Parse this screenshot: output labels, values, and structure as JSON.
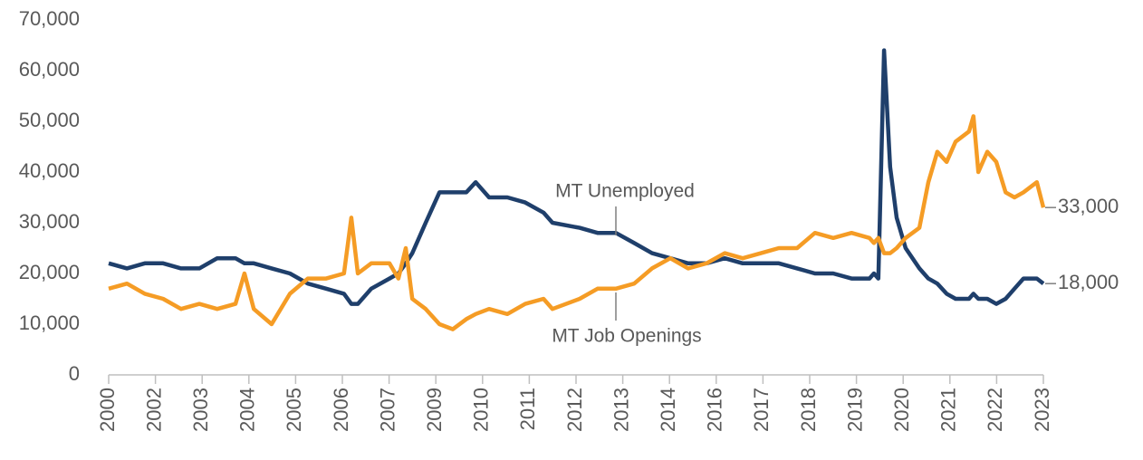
{
  "chart_data": {
    "type": "line",
    "x": [
      2000,
      2000.45,
      2000.89,
      2001.34,
      2001.78,
      2002.23,
      2002.67,
      2003.12,
      2003.34,
      2003.57,
      2004.01,
      2004.46,
      2004.9,
      2005.35,
      2005.79,
      2005.97,
      2006.13,
      2006.46,
      2006.91,
      2007.13,
      2007.31,
      2007.47,
      2007.8,
      2008.14,
      2008.47,
      2008.8,
      2009.03,
      2009.36,
      2009.81,
      2010.25,
      2010.7,
      2010.92,
      2011.59,
      2012.03,
      2012.48,
      2012.93,
      2013.37,
      2013.82,
      2014.26,
      2014.71,
      2015.16,
      2015.6,
      2016.05,
      2016.49,
      2016.94,
      2017.38,
      2017.83,
      2018.28,
      2018.72,
      2018.83,
      2018.94,
      2019.08,
      2019.23,
      2019.39,
      2019.61,
      2019.95,
      2020.17,
      2020.39,
      2020.62,
      2020.84,
      2021.17,
      2021.28,
      2021.4,
      2021.62,
      2021.84,
      2022.07,
      2022.29,
      2022.51,
      2022.84,
      2023
    ],
    "series": [
      {
        "name": "MT Unemployed",
        "color": "#1f3f6b",
        "end_label": "18,000",
        "values": [
          22000,
          21000,
          22000,
          22000,
          21000,
          21000,
          23000,
          23000,
          22000,
          22000,
          21000,
          20000,
          18000,
          17000,
          16000,
          14000,
          14000,
          17000,
          19000,
          20000,
          22000,
          24000,
          30000,
          36000,
          36000,
          36000,
          38000,
          35000,
          35000,
          34000,
          32000,
          30000,
          29000,
          28000,
          28000,
          26000,
          24000,
          23000,
          22000,
          22000,
          23000,
          22000,
          22000,
          22000,
          21000,
          20000,
          20000,
          19000,
          19000,
          20000,
          19000,
          64000,
          41000,
          31000,
          25000,
          21000,
          19000,
          18000,
          16000,
          15000,
          15000,
          16000,
          15000,
          15000,
          14000,
          15000,
          17000,
          19000,
          19000,
          18000
        ]
      },
      {
        "name": "MT Job Openings",
        "color": "#f59c25",
        "end_label": "33,000",
        "values": [
          17000,
          18000,
          16000,
          15000,
          13000,
          14000,
          13000,
          14000,
          20000,
          13000,
          10000,
          16000,
          19000,
          19000,
          20000,
          31000,
          20000,
          22000,
          22000,
          19000,
          25000,
          15000,
          13000,
          10000,
          9000,
          11000,
          12000,
          13000,
          12000,
          14000,
          15000,
          13000,
          15000,
          17000,
          17000,
          18000,
          21000,
          23000,
          21000,
          22000,
          24000,
          23000,
          24000,
          25000,
          25000,
          28000,
          27000,
          28000,
          27000,
          26000,
          27000,
          24000,
          24000,
          25000,
          27000,
          29000,
          38000,
          44000,
          42000,
          46000,
          48000,
          51000,
          40000,
          44000,
          42000,
          36000,
          35000,
          36000,
          38000,
          33000
        ]
      }
    ],
    "xlim": [
      2000,
      2023
    ],
    "xticks": [
      2000,
      {
        "value": 2001.15,
        "label": "2002"
      },
      {
        "value": 2002.3,
        "label": "2003"
      },
      {
        "value": 2003.45,
        "label": "2004"
      },
      {
        "value": 2004.6,
        "label": "2005"
      },
      {
        "value": 2005.75,
        "label": "2006"
      },
      {
        "value": 2006.9,
        "label": "2007"
      },
      {
        "value": 2008.05,
        "label": "2009"
      },
      {
        "value": 2009.2,
        "label": "2010"
      },
      {
        "value": 2010.35,
        "label": "2011"
      },
      {
        "value": 2011.5,
        "label": "2012"
      },
      {
        "value": 2012.65,
        "label": "2013"
      },
      {
        "value": 2013.8,
        "label": "2014"
      },
      {
        "value": 2014.95,
        "label": "2016"
      },
      {
        "value": 2016.1,
        "label": "2017"
      },
      {
        "value": 2017.25,
        "label": "2018"
      },
      {
        "value": 2018.4,
        "label": "2019"
      },
      {
        "value": 2019.55,
        "label": "2020"
      },
      {
        "value": 2020.7,
        "label": "2021"
      },
      {
        "value": 2021.85,
        "label": "2022"
      },
      2023
    ],
    "ylim": [
      0,
      70000
    ],
    "yticks": [
      0,
      {
        "value": 10000,
        "label": "10,000"
      },
      {
        "value": 20000,
        "label": "20,000"
      },
      {
        "value": 30000,
        "label": "30,000"
      },
      {
        "value": 40000,
        "label": "40,000"
      },
      {
        "value": 50000,
        "label": "50,000"
      },
      {
        "value": 60000,
        "label": "60,000"
      },
      {
        "value": 70000,
        "label": "70,000"
      }
    ],
    "grid": false
  }
}
